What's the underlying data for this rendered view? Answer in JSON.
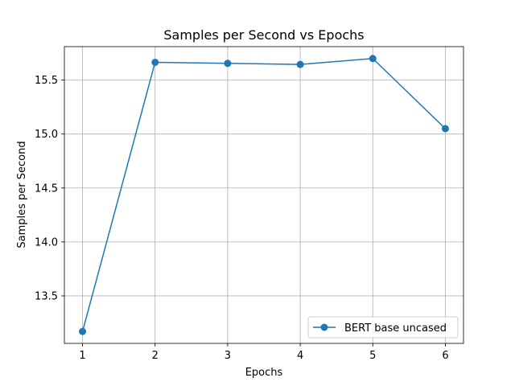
{
  "chart_data": {
    "type": "line",
    "title": "Samples per Second vs Epochs",
    "xlabel": "Epochs",
    "ylabel": "Samples per Second",
    "xlim": [
      0.75,
      6.25
    ],
    "ylim": [
      13.06,
      15.81
    ],
    "x_ticks": [
      1,
      2,
      3,
      4,
      5,
      6
    ],
    "x_tick_labels": [
      "1",
      "2",
      "3",
      "4",
      "5",
      "6"
    ],
    "y_ticks": [
      13.5,
      14.0,
      14.5,
      15.0,
      15.5
    ],
    "y_tick_labels": [
      "13.5",
      "14.0",
      "14.5",
      "15.0",
      "15.5"
    ],
    "grid": true,
    "legend_position": "lower-right",
    "series": [
      {
        "name": "BERT base uncased",
        "color": "#1f77b4",
        "marker": "circle",
        "x": [
          1,
          2,
          3,
          4,
          5,
          6
        ],
        "values": [
          13.17,
          15.665,
          15.655,
          15.645,
          15.7,
          15.05
        ]
      }
    ]
  }
}
